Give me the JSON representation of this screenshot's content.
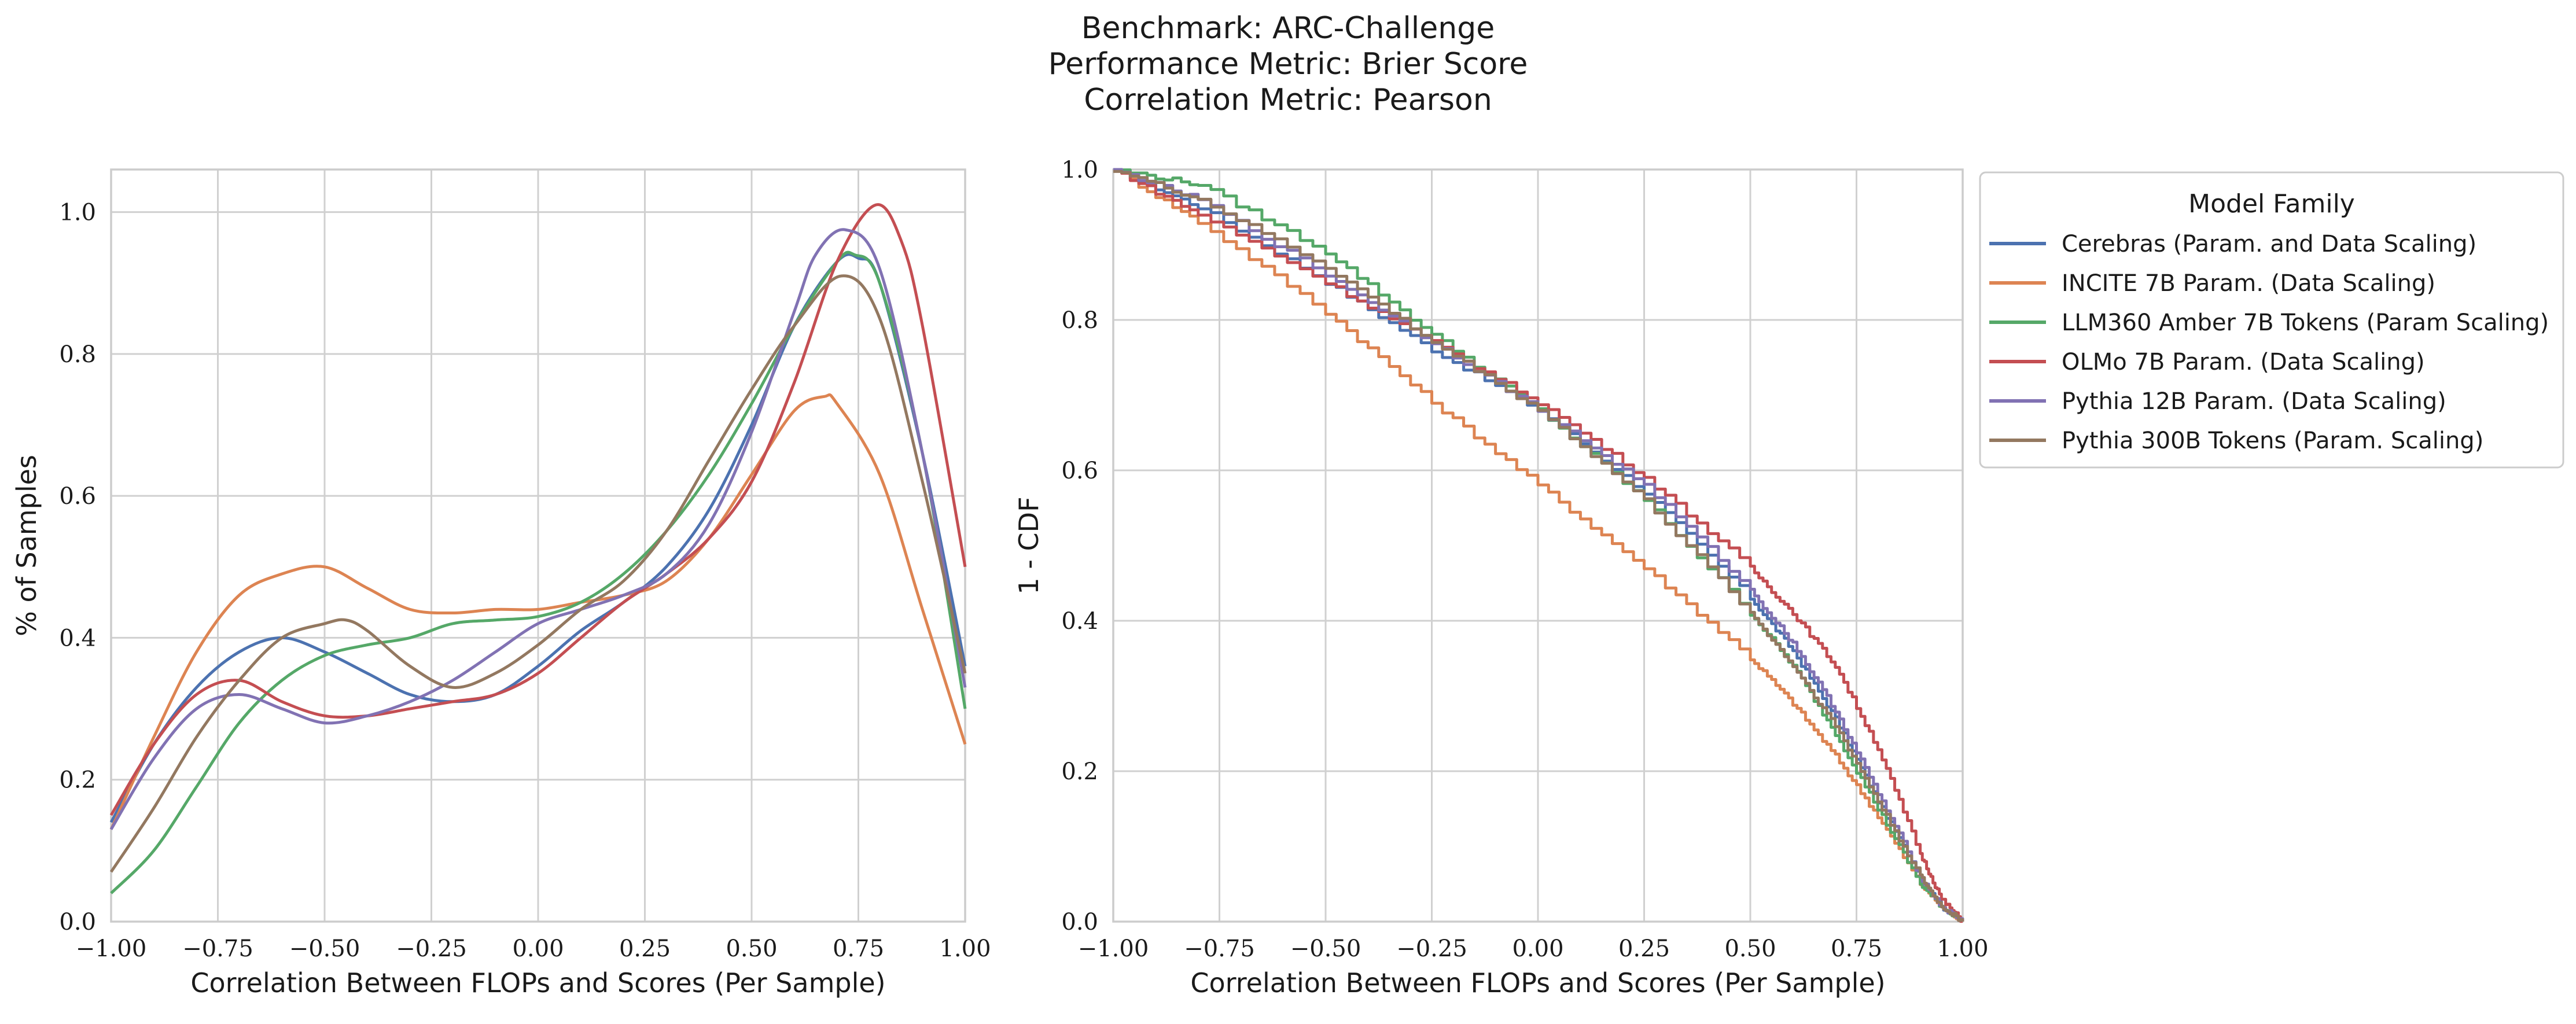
{
  "figure": {
    "title_lines": [
      "Benchmark: ARC-Challenge",
      "Performance Metric: Brier Score",
      "Correlation Metric: Pearson"
    ]
  },
  "legend": {
    "title": "Model Family",
    "placement": "right of second chart, top",
    "entries": [
      {
        "name": "Cerebras (Param. and Data Scaling)",
        "color": "#4c72b0"
      },
      {
        "name": "INCITE 7B Param. (Data Scaling)",
        "color": "#dd8452"
      },
      {
        "name": "LLM360 Amber 7B Tokens (Param Scaling)",
        "color": "#55a868"
      },
      {
        "name": "OLMo 7B Param. (Data Scaling)",
        "color": "#c44e52"
      },
      {
        "name": "Pythia 12B Param. (Data Scaling)",
        "color": "#8172b3"
      },
      {
        "name": "Pythia 300B Tokens (Param. Scaling)",
        "color": "#937860"
      }
    ]
  },
  "chart_data": [
    {
      "type": "line",
      "xlabel": "Correlation Between FLOPs and Scores (Per Sample)",
      "ylabel": "% of Samples",
      "xlim": [
        -1.0,
        1.0
      ],
      "ylim": [
        0.0,
        1.06
      ],
      "xticks": [
        "−1.00",
        "−0.75",
        "−0.50",
        "−0.25",
        "0.00",
        "0.25",
        "0.50",
        "0.75",
        "1.00"
      ],
      "yticks": [
        "0.0",
        "0.2",
        "0.4",
        "0.6",
        "0.8",
        "1.0"
      ],
      "grid": true,
      "series": [
        {
          "name": "Cerebras (Param. and Data Scaling)",
          "color": "#4c72b0",
          "x": [
            -1.0,
            -0.9,
            -0.8,
            -0.7,
            -0.6,
            -0.5,
            -0.4,
            -0.3,
            -0.2,
            -0.1,
            0.0,
            0.1,
            0.2,
            0.3,
            0.4,
            0.5,
            0.6,
            0.7,
            0.75,
            0.8,
            0.9,
            1.0
          ],
          "y": [
            0.14,
            0.25,
            0.33,
            0.38,
            0.4,
            0.38,
            0.35,
            0.32,
            0.31,
            0.32,
            0.36,
            0.41,
            0.45,
            0.5,
            0.58,
            0.7,
            0.84,
            0.93,
            0.935,
            0.9,
            0.66,
            0.36
          ]
        },
        {
          "name": "INCITE 7B Param. (Data Scaling)",
          "color": "#dd8452",
          "x": [
            -1.0,
            -0.9,
            -0.8,
            -0.7,
            -0.6,
            -0.5,
            -0.4,
            -0.3,
            -0.2,
            -0.1,
            0.0,
            0.1,
            0.2,
            0.3,
            0.4,
            0.5,
            0.6,
            0.67,
            0.7,
            0.8,
            0.9,
            1.0
          ],
          "y": [
            0.13,
            0.26,
            0.38,
            0.46,
            0.49,
            0.5,
            0.47,
            0.44,
            0.435,
            0.44,
            0.44,
            0.45,
            0.46,
            0.48,
            0.54,
            0.63,
            0.72,
            0.74,
            0.73,
            0.63,
            0.44,
            0.25
          ]
        },
        {
          "name": "LLM360 Amber 7B Tokens (Param Scaling)",
          "color": "#55a868",
          "x": [
            -1.0,
            -0.9,
            -0.8,
            -0.7,
            -0.6,
            -0.5,
            -0.4,
            -0.3,
            -0.2,
            -0.1,
            0.0,
            0.1,
            0.2,
            0.3,
            0.4,
            0.5,
            0.6,
            0.7,
            0.74,
            0.8,
            0.9,
            1.0
          ],
          "y": [
            0.04,
            0.1,
            0.19,
            0.28,
            0.34,
            0.375,
            0.39,
            0.4,
            0.42,
            0.425,
            0.43,
            0.45,
            0.49,
            0.55,
            0.63,
            0.73,
            0.84,
            0.93,
            0.94,
            0.9,
            0.66,
            0.3
          ]
        },
        {
          "name": "OLMo 7B Param. (Data Scaling)",
          "color": "#c44e52",
          "x": [
            -1.0,
            -0.9,
            -0.8,
            -0.7,
            -0.6,
            -0.5,
            -0.4,
            -0.3,
            -0.2,
            -0.1,
            0.0,
            0.1,
            0.2,
            0.3,
            0.4,
            0.5,
            0.6,
            0.7,
            0.79,
            0.85,
            0.9,
            1.0
          ],
          "y": [
            0.15,
            0.25,
            0.32,
            0.34,
            0.31,
            0.29,
            0.29,
            0.3,
            0.31,
            0.32,
            0.35,
            0.4,
            0.45,
            0.49,
            0.54,
            0.62,
            0.76,
            0.93,
            1.01,
            0.96,
            0.84,
            0.5
          ]
        },
        {
          "name": "Pythia 12B Param. (Data Scaling)",
          "color": "#8172b3",
          "x": [
            -1.0,
            -0.9,
            -0.8,
            -0.7,
            -0.6,
            -0.5,
            -0.4,
            -0.3,
            -0.2,
            -0.1,
            0.0,
            0.1,
            0.2,
            0.3,
            0.4,
            0.5,
            0.6,
            0.65,
            0.72,
            0.8,
            0.9,
            1.0
          ],
          "y": [
            0.13,
            0.23,
            0.3,
            0.32,
            0.3,
            0.28,
            0.29,
            0.31,
            0.34,
            0.38,
            0.42,
            0.44,
            0.46,
            0.49,
            0.56,
            0.69,
            0.86,
            0.94,
            0.975,
            0.92,
            0.66,
            0.33
          ]
        },
        {
          "name": "Pythia 300B Tokens (Param. Scaling)",
          "color": "#937860",
          "x": [
            -1.0,
            -0.9,
            -0.8,
            -0.7,
            -0.6,
            -0.5,
            -0.45,
            -0.4,
            -0.3,
            -0.2,
            -0.1,
            0.0,
            0.1,
            0.2,
            0.3,
            0.4,
            0.5,
            0.6,
            0.71,
            0.8,
            0.9,
            1.0
          ],
          "y": [
            0.07,
            0.16,
            0.26,
            0.34,
            0.4,
            0.42,
            0.425,
            0.41,
            0.36,
            0.33,
            0.35,
            0.39,
            0.44,
            0.48,
            0.55,
            0.65,
            0.75,
            0.84,
            0.91,
            0.85,
            0.62,
            0.35
          ]
        }
      ]
    },
    {
      "type": "line",
      "xlabel": "Correlation Between FLOPs and Scores (Per Sample)",
      "ylabel": "1 - CDF",
      "xlim": [
        -1.0,
        1.0
      ],
      "ylim": [
        0.0,
        1.0
      ],
      "xticks": [
        "−1.00",
        "−0.75",
        "−0.50",
        "−0.25",
        "0.00",
        "0.25",
        "0.50",
        "0.75",
        "1.00"
      ],
      "yticks": [
        "0.0",
        "0.2",
        "0.4",
        "0.6",
        "0.8",
        "1.0"
      ],
      "grid": true,
      "series": [
        {
          "name": "Cerebras (Param. and Data Scaling)",
          "color": "#4c72b0",
          "x": [
            -1.0,
            -0.8,
            -0.5,
            -0.25,
            0.0,
            0.25,
            0.5,
            0.6,
            0.7,
            0.8,
            0.9,
            0.95,
            1.0
          ],
          "y": [
            1.0,
            0.95,
            0.85,
            0.76,
            0.68,
            0.57,
            0.43,
            0.36,
            0.27,
            0.16,
            0.06,
            0.02,
            0.0
          ]
        },
        {
          "name": "INCITE 7B Param. (Data Scaling)",
          "color": "#dd8452",
          "x": [
            -1.0,
            -0.8,
            -0.5,
            -0.25,
            0.0,
            0.25,
            0.5,
            0.6,
            0.7,
            0.8,
            0.9,
            0.95,
            1.0
          ],
          "y": [
            1.0,
            0.93,
            0.81,
            0.69,
            0.58,
            0.47,
            0.35,
            0.29,
            0.22,
            0.14,
            0.05,
            0.02,
            0.0
          ]
        },
        {
          "name": "LLM360 Amber 7B Tokens (Param Scaling)",
          "color": "#55a868",
          "x": [
            -1.0,
            -0.8,
            -0.5,
            -0.25,
            0.0,
            0.25,
            0.5,
            0.6,
            0.7,
            0.8,
            0.9,
            0.95,
            1.0
          ],
          "y": [
            1.0,
            0.98,
            0.89,
            0.78,
            0.68,
            0.56,
            0.41,
            0.34,
            0.25,
            0.15,
            0.05,
            0.02,
            0.0
          ]
        },
        {
          "name": "OLMo 7B Param. (Data Scaling)",
          "color": "#c44e52",
          "x": [
            -1.0,
            -0.8,
            -0.5,
            -0.25,
            0.0,
            0.25,
            0.5,
            0.6,
            0.7,
            0.8,
            0.9,
            0.95,
            1.0
          ],
          "y": [
            1.0,
            0.94,
            0.85,
            0.77,
            0.69,
            0.59,
            0.47,
            0.41,
            0.34,
            0.23,
            0.09,
            0.03,
            0.0
          ]
        },
        {
          "name": "Pythia 12B Param. (Data Scaling)",
          "color": "#8172b3",
          "x": [
            -1.0,
            -0.8,
            -0.5,
            -0.25,
            0.0,
            0.25,
            0.5,
            0.6,
            0.7,
            0.8,
            0.9,
            0.95,
            1.0
          ],
          "y": [
            1.0,
            0.96,
            0.86,
            0.77,
            0.68,
            0.58,
            0.44,
            0.37,
            0.28,
            0.17,
            0.06,
            0.02,
            0.0
          ]
        },
        {
          "name": "Pythia 300B Tokens (Param. Scaling)",
          "color": "#937860",
          "x": [
            -1.0,
            -0.8,
            -0.5,
            -0.25,
            0.0,
            0.25,
            0.5,
            0.6,
            0.7,
            0.8,
            0.9,
            0.95,
            1.0
          ],
          "y": [
            1.0,
            0.96,
            0.87,
            0.77,
            0.68,
            0.56,
            0.41,
            0.34,
            0.26,
            0.16,
            0.06,
            0.02,
            0.0
          ]
        }
      ]
    }
  ]
}
